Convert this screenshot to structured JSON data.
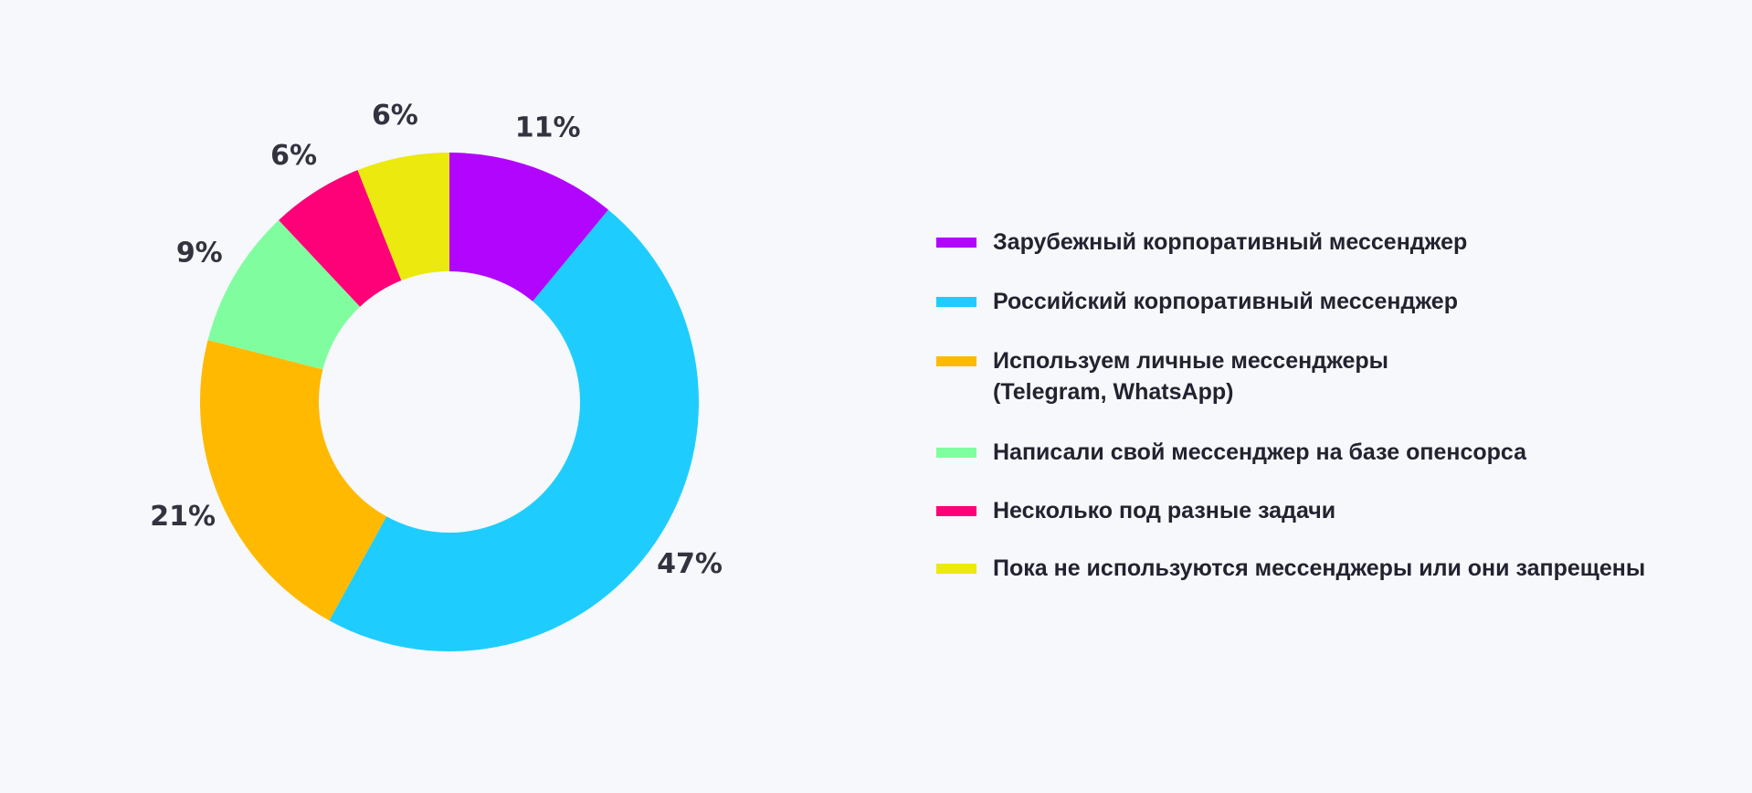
{
  "chart_data": {
    "type": "pie",
    "variant": "donut",
    "title": "",
    "legend_position": "right",
    "slices": [
      {
        "label": "Зарубежный корпоративный мессенджер",
        "value": 11,
        "value_label": "11%",
        "color": "#b205fe"
      },
      {
        "label": "Российский корпоративный мессенджер",
        "value": 47,
        "value_label": "47%",
        "color": "#1ecdfd"
      },
      {
        "label": "Используем личные мессенджеры\n(Telegram, WhatsApp)",
        "value": 21,
        "value_label": "21%",
        "color": "#ffb900"
      },
      {
        "label": "Написали свой мессенджер на базе опенсорса",
        "value": 9,
        "value_label": "9%",
        "color": "#80fe9f"
      },
      {
        "label": "Несколько под разные задачи",
        "value": 6,
        "value_label": "6%",
        "color": "#fe0077"
      },
      {
        "label": "Пока не используются мессенджеры или они запрещены",
        "value": 6,
        "value_label": "6%",
        "color": "#ebe90e"
      }
    ]
  }
}
